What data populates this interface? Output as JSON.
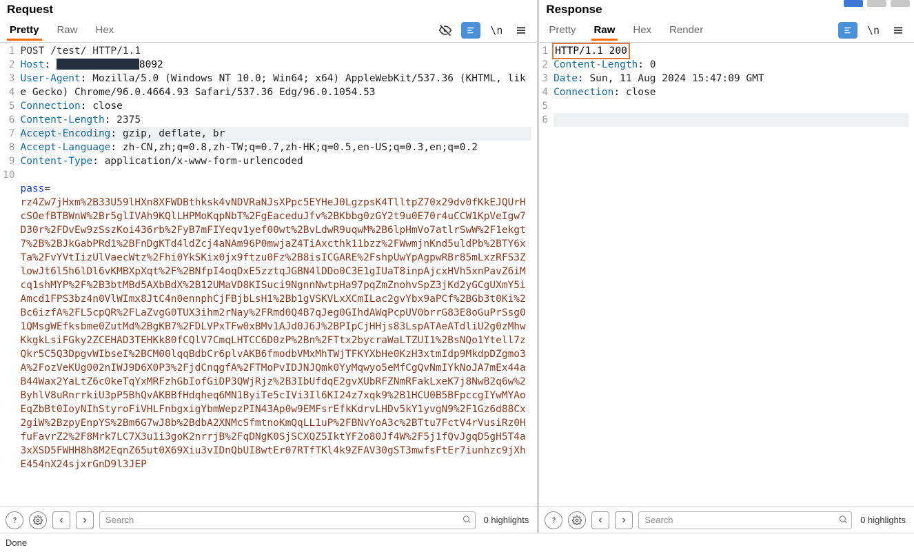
{
  "colors": {
    "accent": "#ff6b00",
    "header_key": "#146a9e",
    "param_key": "#1a3fb5",
    "encoded_body": "#8a3b22",
    "redaction": "#232f3e",
    "status_outline": "#e07a3a",
    "icon_blue": "#4a90d9"
  },
  "request": {
    "title": "Request",
    "tabs": [
      {
        "label": "Pretty",
        "active": true
      },
      {
        "label": "Raw",
        "active": false
      },
      {
        "label": "Hex",
        "active": false
      }
    ],
    "lines": [
      {
        "n": 1,
        "type": "reqline",
        "text": "POST /test/ HTTP/1.1"
      },
      {
        "n": 2,
        "type": "header",
        "name": "Host",
        "value_prefix": "",
        "redacted": true,
        "value_suffix": "8092"
      },
      {
        "n": 3,
        "type": "header",
        "name": "User-Agent",
        "value": "Mozilla/5.0 (Windows NT 10.0; Win64; x64) AppleWebKit/537.36 (KHTML, like Gecko) Chrome/96.0.4664.93 Safari/537.36 Edg/96.0.1054.53"
      },
      {
        "n": 4,
        "type": "header",
        "name": "Connection",
        "value": "close"
      },
      {
        "n": 5,
        "type": "header",
        "name": "Content-Length",
        "value": "2375"
      },
      {
        "n": 6,
        "type": "header",
        "name": "Accept-Encoding",
        "value": "gzip, deflate, br",
        "hl": true
      },
      {
        "n": 7,
        "type": "header",
        "name": "Accept-Language",
        "value": "zh-CN,zh;q=0.8,zh-TW;q=0.7,zh-HK;q=0.5,en-US;q=0.3,en;q=0.2"
      },
      {
        "n": 8,
        "type": "header",
        "name": "Content-Type",
        "value": "application/x-www-form-urlencoded"
      },
      {
        "n": 9,
        "type": "blank"
      },
      {
        "n": 10,
        "type": "param",
        "name": "pass",
        "eq": "="
      }
    ],
    "body_encoded": "rz4Zw7jHxm%2B33U59lHXn8XFWDBthksk4vNDVRaNJsXPpc5EYHeJ0LgzpsK4TlltpZ70x29dv0fKkEJQUrHcSOefBTBWnW%2Br5glIVAh9KQlLHPMoKqpNbT%2FgEaceduJfv%2BKbbg0zGY2t9u0E70r4uCCW1KpVeIgw7D30r%2FDvEw9zSszKoi436rb%2FyB7mFIYeqv1yef00wt%2BvLdwR9uqwM%2B6lpHmVo7atlrSwW%2F1ekgt7%2B%2BJkGabPRd1%2BFnDgKTd4ldZcj4aNAm96P0mwjaZ4TiAxcthk11bzz%2FWwmjnKnd5uldPb%2BTY6xTa%2FvYVtIizUlVaecWtz%2Fhi0YkSKix0jx9ftzu0Fz%2B8isICGARE%2FshpUwYpAgpwRBr85mLxzRFS3ZlowJt6l5h6lDl6vKMBXpXqt%2F%2BNfpI4oqDxE5zztqJGBN4lDDo0C3E1gIUaT8inpAjcxHVh5xnPavZ6iMcq1shMYP%2F%2B3btMBd5AXbBdX%2B12UMaVD8KISuci9NgnnNwtpHa97pqZmZnohvSpZ3jKd2yGCgUXmY5iAmcd1FPS3bz4n0VlWImx8JtC4n0ennphCjFBjbLsH1%2Bb1gVSKVLxXCmILac2gvYbx9aPCf%2BGb3t0Ki%2Bc6izfA%2FL5cpQR%2FLaZvgG0TUX3ihm2rNay%2FRmd0Q4B7qJeg0GIhdAWqPcpUV0brrG83E8oGuPrSsg01QMsgWEfksbme0ZutMd%2BgKB7%2FDLVPxTFw0xBMv1AJd0J6J%2BPIpCjHHjs83LspATAeATdliU2g0zMhwKkgkLsiFGky2ZCEHAD3TEHKk80fCQlV7CmqLHTCC6D0zP%2Bn%2FTtx2bycraWaLTZUI1%2BsNQo1Ytell7zQkr5C5Q3DpgvWIbseI%2BCM00lqqBdbCr6plvAKB6fmodbVMxMhTWjTFKYXbHe0KzH3xtmIdp9MkdpDZgmo3A%2FozVeKUg002nIWJ9D6X0P3%2FjdCnqgfA%2FTMoPvIDJNJQmk0YyMqwyo5eMfCgQvNmIYkNoJA7mEx44aB44Wax2YaLtZ6c0keTqYxMRFzhGbIofGiDP3QWjRjz%2B3IbUfdqE2gvXUbRFZNmRFakLxeK7j8NwB2q6w%2ByhlV8uRnrrkiU3pP5BhQvAKBBfHdqheq6MN1ByiTe5cIVi3Il6KI24z7xqk9%2B1HCU0B5BFpccgIYwMYAoEqZbBt0IoyNIhStyroFiVHLFnbgxigYbmWepzPIN43Ap0w9EMFsrEfkKdrvLHDv5kY1yvgN9%2F1Gz6d88Cx2giW%2BzpyEnpYS%2Bm6G7wJ8b%2BdbA2XNMcSfmtnoKmQqLL1uP%2FBNvYoA3c%2BTtu7FctV4rVusiRz0HfuFavrZ2%2F8Mrk7LC7X3u1i3goK2nrrjB%2FqDNgK0SjSCXQZ5IktYF2o80Jf4W%2F5j1fQvJgqD5gH5T4a3xXSD5FWHH8h8M2EqnZ65ut0X69Xiu3vIDnQbUI8wtEr07RTfTKl4k9ZFAV30gST3mwfsFtEr7iunhzc9jXhE454nX24sjxrGnD9l3JEP",
    "search": {
      "placeholder": "Search",
      "highlights": "0 highlights"
    }
  },
  "response": {
    "title": "Response",
    "tabs": [
      {
        "label": "Pretty",
        "active": false
      },
      {
        "label": "Raw",
        "active": true
      },
      {
        "label": "Hex",
        "active": false
      },
      {
        "label": "Render",
        "active": false
      }
    ],
    "lines": [
      {
        "n": 1,
        "type": "status",
        "text": "HTTP/1.1 200",
        "outlined": true
      },
      {
        "n": 2,
        "type": "header",
        "name": "Content-Length",
        "value": "0"
      },
      {
        "n": 3,
        "type": "header",
        "name": "Date",
        "value": "Sun, 11 Aug 2024 15:47:09 GMT"
      },
      {
        "n": 4,
        "type": "header",
        "name": "Connection",
        "value": "close"
      },
      {
        "n": 5,
        "type": "blank"
      },
      {
        "n": 6,
        "type": "blank",
        "hl": true
      }
    ],
    "search": {
      "placeholder": "Search",
      "highlights": "0 highlights"
    }
  },
  "footer": {
    "status": "Done"
  }
}
